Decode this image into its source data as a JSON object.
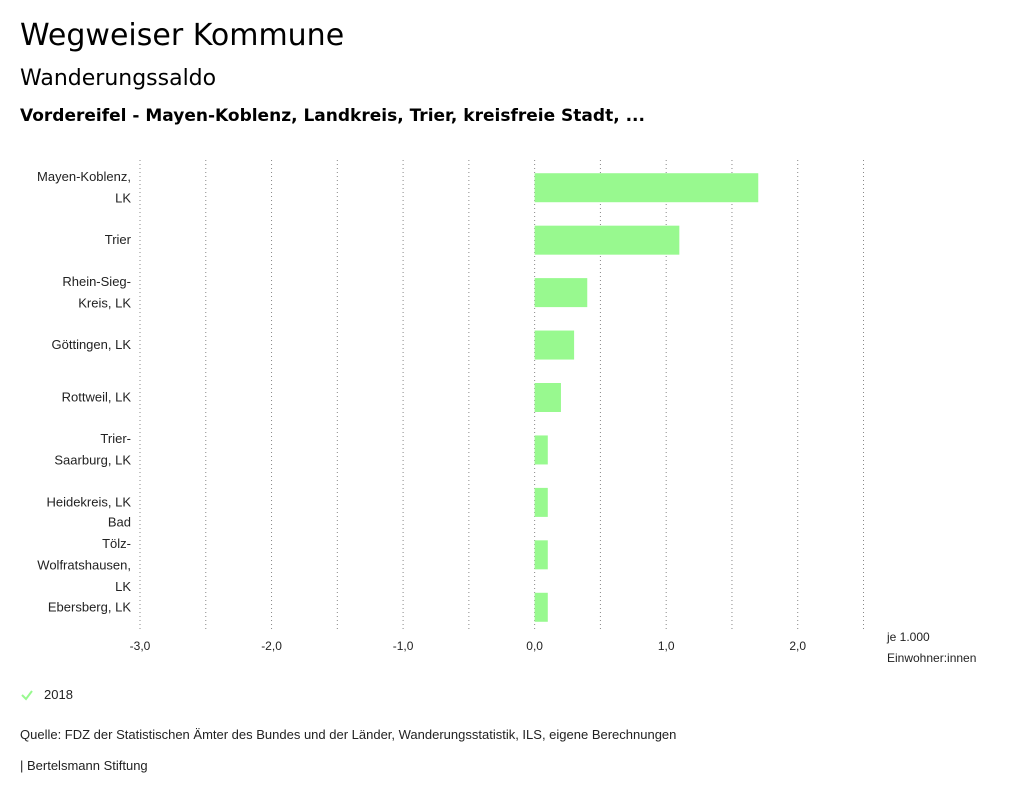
{
  "header": {
    "title": "Wegweiser Kommune",
    "subtitle": "Wanderungssaldo",
    "regions": "Vordereifel - Mayen-Koblenz, Landkreis, Trier, kreisfreie Stadt, ..."
  },
  "chart_data": {
    "type": "bar",
    "orientation": "horizontal",
    "categories": [
      [
        "Mayen-Koblenz,",
        "LK"
      ],
      [
        "Trier"
      ],
      [
        "Rhein-Sieg-",
        "Kreis, LK"
      ],
      [
        "Göttingen, LK"
      ],
      [
        "Rottweil, LK"
      ],
      [
        "Trier-",
        "Saarburg, LK"
      ],
      [
        "Heidekreis, LK"
      ],
      [
        "Bad",
        "Tölz-",
        "Wolfratshausen,",
        "LK"
      ],
      [
        "Ebersberg, LK"
      ]
    ],
    "series": [
      {
        "name": "2018",
        "values": [
          1.7,
          1.1,
          0.4,
          0.3,
          0.2,
          0.1,
          0.1,
          0.1,
          0.1
        ]
      }
    ],
    "xlim": [
      -3.0,
      2.5
    ],
    "xticks": [
      -3.0,
      -2.0,
      -1.0,
      0.0,
      1.0,
      2.0
    ],
    "xtick_labels": [
      "-3,0",
      "-2,0",
      "-1,0",
      "0,0",
      "1,0",
      "2,0"
    ],
    "xunit": [
      "je 1.000",
      "Einwohner:innen"
    ],
    "grid": "vertical dotted",
    "legend": "bottom-left"
  },
  "colors": {
    "bar": "#98f98f",
    "grid": "#888888"
  },
  "legend": {
    "label": "2018",
    "icon": "check-icon"
  },
  "footer": {
    "source": "Quelle: FDZ der Statistischen Ämter des Bundes und der Länder, Wanderungsstatistik, ILS, eigene Berechnungen",
    "publisher": "| Bertelsmann Stiftung"
  }
}
